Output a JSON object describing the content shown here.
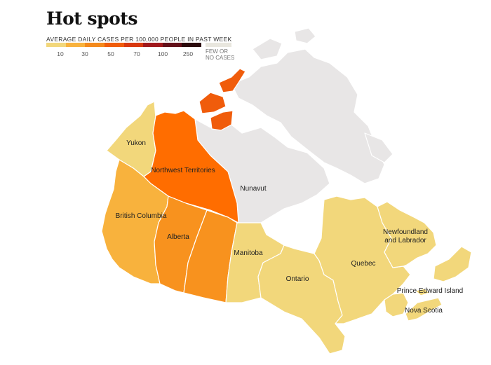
{
  "title": "Hot spots",
  "legend": {
    "title": "AVERAGE DAILY CASES PER 100,000 PEOPLE IN PAST WEEK",
    "colors": [
      "#f2d77b",
      "#f8b23d",
      "#f48a1c",
      "#f05c0b",
      "#d8380f",
      "#a0181c",
      "#621019",
      "#2a0a0c"
    ],
    "ticks": [
      "10",
      "30",
      "50",
      "70",
      "100",
      "250"
    ],
    "few_label_line1": "FEW OR",
    "few_label_line2": "NO CASES",
    "few_color": "#e8e6de"
  },
  "regions": {
    "yukon": {
      "label": "Yukon",
      "color": "#f2d77b"
    },
    "nwt": {
      "label": "Northwest Territories",
      "color": "#ff6d00"
    },
    "nunavut": {
      "label": "Nunavut",
      "color": "#e8e6e6"
    },
    "bc": {
      "label": "British Columbia",
      "color": "#f8b23d"
    },
    "alberta": {
      "label": "Alberta",
      "color": "#f8921e"
    },
    "saskatchewan": {
      "label": "",
      "color": "#f8921e"
    },
    "manitoba": {
      "label": "Manitoba",
      "color": "#f2d77b"
    },
    "ontario": {
      "label": "Ontario",
      "color": "#f2d77b"
    },
    "quebec": {
      "label": "Quebec",
      "color": "#f2d77b"
    },
    "nl_line1": "Newfoundland",
    "nl_line2": "and Labrador",
    "pei": {
      "label": "Prince Edward Island"
    },
    "nova_scotia": {
      "label": "Nova Scotia"
    },
    "arctic_islands_color": "#f05c0b"
  }
}
